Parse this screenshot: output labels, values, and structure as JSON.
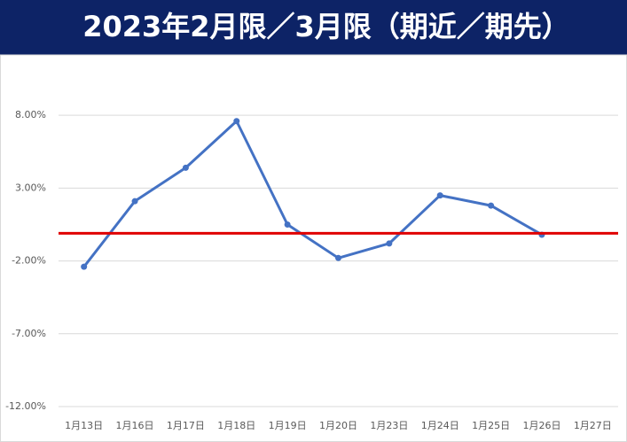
{
  "chart_data": {
    "type": "line",
    "title": "2023年2月限／3月限（期近／期先）",
    "categories": [
      "1月13日",
      "1月16日",
      "1月17日",
      "1月18日",
      "1月19日",
      "1月20日",
      "1月23日",
      "1月24日",
      "1月25日",
      "1月26日",
      "1月27日"
    ],
    "series": [
      {
        "color": "#4472c4",
        "values": [
          -2.4,
          2.1,
          4.4,
          7.6,
          0.5,
          -1.8,
          -0.8,
          2.5,
          1.8,
          -0.2,
          null
        ]
      }
    ],
    "reference_line": {
      "value": -0.1,
      "color": "#e00000"
    },
    "ylim": [
      -12,
      12
    ],
    "yticks": [
      {
        "value": -12,
        "label": "-12.00%"
      },
      {
        "value": -7,
        "label": "-7.00%"
      },
      {
        "value": -2,
        "label": "-2.00%"
      },
      {
        "value": 3,
        "label": "3.00%"
      },
      {
        "value": 8,
        "label": "8.00%"
      }
    ],
    "grid": true
  }
}
